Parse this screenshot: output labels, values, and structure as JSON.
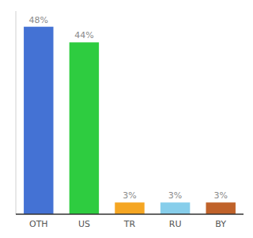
{
  "chart_data": {
    "type": "bar",
    "categories": [
      "OTH",
      "US",
      "TR",
      "RU",
      "BY"
    ],
    "values": [
      48,
      44,
      3,
      3,
      3
    ],
    "value_labels": [
      "48%",
      "44%",
      "3%",
      "3%",
      "3%"
    ],
    "colors": [
      "#4472d4",
      "#2ecc40",
      "#f5a623",
      "#87ceeb",
      "#c0622a"
    ],
    "ylim": [
      0,
      52
    ],
    "data_labels": true,
    "tick_labels": "x",
    "grid": false
  }
}
